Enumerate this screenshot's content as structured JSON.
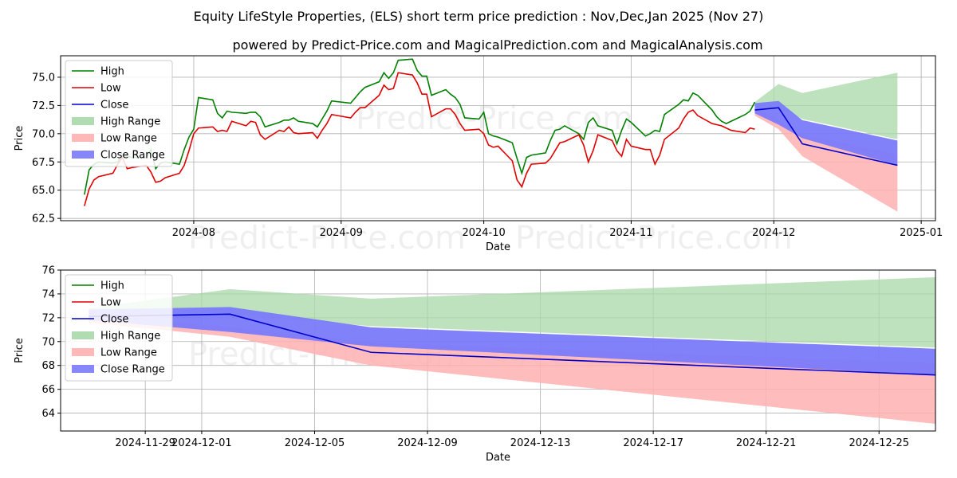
{
  "title": "Equity LifeStyle Properties, (ELS) short term price prediction : Nov,Dec,Jan 2025 (Nov 27)",
  "subtitle": "powered by Predict-Price.com and MagicalPrediction.com and MagicalAnalysis.com",
  "watermark": "Predict-Price.com",
  "colors": {
    "high": "#008000",
    "low": "#e00000",
    "close": "#0000cc",
    "high_range": "#a8d8a8",
    "low_range": "#ffb0b0",
    "close_range": "#7a7afa"
  },
  "chart_data": [
    {
      "type": "line",
      "xlabel": "Date",
      "ylabel": "Price",
      "legend_position": "top-left",
      "grid": true,
      "xlim": [
        "2024-07-04",
        "2025-01-04"
      ],
      "ylim": [
        62.3,
        76.9
      ],
      "x_ticks": [
        "2024-08",
        "2024-09",
        "2024-10",
        "2024-11",
        "2024-12",
        "2025-01"
      ],
      "x_tick_dates": [
        "2024-08-01",
        "2024-09-01",
        "2024-10-01",
        "2024-11-01",
        "2024-12-01",
        "2025-01-01"
      ],
      "y_ticks": [
        62.5,
        65.0,
        67.5,
        70.0,
        72.5,
        75.0
      ],
      "legend": [
        "High",
        "Low",
        "Close",
        "High Range",
        "Low Range",
        "Close Range"
      ],
      "history": {
        "dates": [
          "2024-07-09",
          "2024-07-10",
          "2024-07-11",
          "2024-07-12",
          "2024-07-15",
          "2024-07-16",
          "2024-07-17",
          "2024-07-18",
          "2024-07-19",
          "2024-07-22",
          "2024-07-23",
          "2024-07-24",
          "2024-07-25",
          "2024-07-26",
          "2024-07-29",
          "2024-07-30",
          "2024-07-31",
          "2024-08-01",
          "2024-08-02",
          "2024-08-05",
          "2024-08-06",
          "2024-08-07",
          "2024-08-08",
          "2024-08-09",
          "2024-08-12",
          "2024-08-13",
          "2024-08-14",
          "2024-08-15",
          "2024-08-16",
          "2024-08-19",
          "2024-08-20",
          "2024-08-21",
          "2024-08-22",
          "2024-08-23",
          "2024-08-26",
          "2024-08-27",
          "2024-08-28",
          "2024-08-29",
          "2024-08-30",
          "2024-09-03",
          "2024-09-04",
          "2024-09-05",
          "2024-09-06",
          "2024-09-09",
          "2024-09-10",
          "2024-09-11",
          "2024-09-12",
          "2024-09-13",
          "2024-09-16",
          "2024-09-17",
          "2024-09-18",
          "2024-09-19",
          "2024-09-20",
          "2024-09-23",
          "2024-09-24",
          "2024-09-25",
          "2024-09-26",
          "2024-09-27",
          "2024-09-30",
          "2024-10-01",
          "2024-10-02",
          "2024-10-03",
          "2024-10-04",
          "2024-10-07",
          "2024-10-08",
          "2024-10-09",
          "2024-10-10",
          "2024-10-11",
          "2024-10-14",
          "2024-10-15",
          "2024-10-16",
          "2024-10-17",
          "2024-10-18",
          "2024-10-21",
          "2024-10-22",
          "2024-10-23",
          "2024-10-24",
          "2024-10-25",
          "2024-10-28",
          "2024-10-29",
          "2024-10-30",
          "2024-10-31",
          "2024-11-01",
          "2024-11-04",
          "2024-11-05",
          "2024-11-06",
          "2024-11-07",
          "2024-11-08",
          "2024-11-11",
          "2024-11-12",
          "2024-11-13",
          "2024-11-14",
          "2024-11-15",
          "2024-11-18",
          "2024-11-19",
          "2024-11-20",
          "2024-11-21",
          "2024-11-22",
          "2024-11-25",
          "2024-11-26",
          "2024-11-27"
        ],
        "high": [
          64.6,
          66.8,
          67.3,
          67.5,
          67.4,
          67.5,
          68.1,
          68.0,
          67.9,
          67.9,
          68.6,
          66.9,
          67.4,
          67.5,
          67.3,
          68.6,
          69.7,
          70.4,
          73.2,
          73.0,
          71.8,
          71.4,
          72.0,
          71.9,
          71.8,
          71.9,
          71.9,
          71.5,
          70.6,
          71.0,
          71.2,
          71.2,
          71.4,
          71.1,
          70.9,
          70.6,
          71.3,
          72.0,
          72.9,
          72.7,
          73.2,
          73.7,
          74.1,
          74.6,
          75.4,
          74.9,
          75.4,
          76.5,
          76.6,
          75.6,
          75.1,
          75.1,
          73.4,
          73.9,
          73.5,
          73.2,
          72.6,
          71.4,
          71.3,
          71.9,
          70.0,
          69.8,
          69.7,
          69.2,
          67.8,
          66.5,
          67.9,
          68.1,
          68.3,
          69.4,
          70.3,
          70.4,
          70.7,
          70.0,
          69.5,
          71.0,
          71.4,
          70.7,
          70.3,
          69.1,
          70.3,
          71.3,
          71.0,
          69.8,
          70.0,
          70.3,
          70.2,
          71.7,
          72.6,
          73.0,
          72.9,
          73.6,
          73.4,
          72.1,
          71.5,
          71.1,
          70.9,
          71.1,
          71.7,
          72.0,
          72.8
        ],
        "low": [
          63.6,
          65.1,
          65.9,
          66.2,
          66.5,
          67.3,
          67.9,
          66.9,
          67.0,
          67.2,
          66.6,
          65.7,
          65.8,
          66.1,
          66.5,
          67.2,
          68.5,
          70.0,
          70.5,
          70.6,
          70.2,
          70.3,
          70.2,
          71.1,
          70.7,
          71.1,
          71.0,
          69.9,
          69.5,
          70.3,
          70.2,
          70.6,
          70.1,
          70.0,
          70.1,
          69.6,
          70.3,
          70.9,
          71.7,
          71.4,
          71.9,
          72.3,
          72.3,
          73.4,
          74.3,
          73.9,
          74.0,
          75.4,
          75.2,
          74.5,
          73.5,
          73.5,
          71.5,
          72.2,
          72.2,
          71.7,
          70.9,
          70.3,
          70.4,
          70.0,
          69.0,
          68.8,
          68.9,
          67.6,
          65.9,
          65.3,
          66.5,
          67.3,
          67.4,
          67.8,
          68.5,
          69.2,
          69.3,
          69.9,
          69.0,
          67.5,
          68.5,
          69.9,
          69.4,
          68.5,
          68.0,
          69.5,
          68.9,
          68.6,
          68.6,
          67.3,
          68.1,
          69.5,
          70.5,
          71.3,
          71.9,
          72.1,
          71.6,
          70.9,
          70.8,
          70.7,
          70.5,
          70.3,
          70.1,
          70.5,
          70.4
        ],
        "close": []
      },
      "forecast": {
        "dates": [
          "2024-11-27",
          "2024-12-02",
          "2024-12-07",
          "2024-12-27"
        ],
        "high_range_upper": [
          72.8,
          74.4,
          73.6,
          75.4
        ],
        "high_range_lower": [
          72.3,
          72.3,
          71.3,
          69.5
        ],
        "low_range_upper": [
          72.3,
          71.2,
          69.9,
          68.2
        ],
        "low_range_lower": [
          71.6,
          70.4,
          68.0,
          63.1
        ],
        "close_range_upper": [
          72.7,
          72.9,
          71.2,
          69.4
        ],
        "close_range_lower": [
          71.8,
          70.8,
          69.6,
          67.2
        ],
        "close": [
          72.1,
          72.3,
          69.1,
          67.2
        ]
      }
    },
    {
      "type": "line",
      "xlabel": "Date",
      "ylabel": "Price",
      "legend_position": "top-left",
      "grid": true,
      "xlim": [
        "2024-11-26",
        "2024-12-27"
      ],
      "ylim": [
        62.5,
        76.0
      ],
      "x_ticks": [
        "2024-11-29",
        "2024-12-01",
        "2024-12-05",
        "2024-12-09",
        "2024-12-13",
        "2024-12-17",
        "2024-12-21",
        "2024-12-25"
      ],
      "x_tick_dates": [
        "2024-11-29",
        "2024-12-01",
        "2024-12-05",
        "2024-12-09",
        "2024-12-13",
        "2024-12-17",
        "2024-12-21",
        "2024-12-25"
      ],
      "y_ticks": [
        64,
        66,
        68,
        70,
        72,
        74,
        76
      ],
      "legend": [
        "High",
        "Low",
        "Close",
        "High Range",
        "Low Range",
        "Close Range"
      ]
    }
  ]
}
